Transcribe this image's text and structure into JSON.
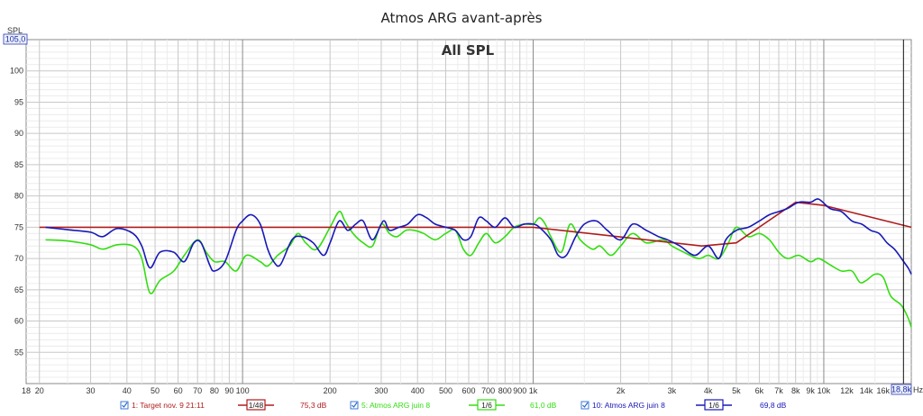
{
  "chart_data": {
    "type": "line",
    "title": "Atmos ARG avant-après",
    "subtitle": "All SPL",
    "ylabel": "SPL",
    "xunit": "Hz",
    "x_scale": "log",
    "xlim": [
      18,
      20000
    ],
    "ylim": [
      50,
      105
    ],
    "y_top_readout": "105,0",
    "x_end_readout": "18,8k",
    "cursor_x": 18800,
    "grid": true,
    "legend_placement": "bottom",
    "yticks": [
      {
        "v": 55,
        "label": "55"
      },
      {
        "v": 60,
        "label": "60"
      },
      {
        "v": 65,
        "label": "65"
      },
      {
        "v": 70,
        "label": "70"
      },
      {
        "v": 75,
        "label": "75"
      },
      {
        "v": 80,
        "label": "80"
      },
      {
        "v": 85,
        "label": "85"
      },
      {
        "v": 90,
        "label": "90"
      },
      {
        "v": 95,
        "label": "95"
      },
      {
        "v": 100,
        "label": "100"
      }
    ],
    "xticks": [
      {
        "v": 18,
        "label": "18"
      },
      {
        "v": 20,
        "label": "20"
      },
      {
        "v": 30,
        "label": "30"
      },
      {
        "v": 40,
        "label": "40"
      },
      {
        "v": 50,
        "label": "50"
      },
      {
        "v": 60,
        "label": "60"
      },
      {
        "v": 70,
        "label": "70"
      },
      {
        "v": 80,
        "label": "80"
      },
      {
        "v": 90,
        "label": "90"
      },
      {
        "v": 100,
        "label": "100"
      },
      {
        "v": 200,
        "label": "200"
      },
      {
        "v": 300,
        "label": "300"
      },
      {
        "v": 400,
        "label": "400"
      },
      {
        "v": 500,
        "label": "500"
      },
      {
        "v": 600,
        "label": "600"
      },
      {
        "v": 700,
        "label": "700"
      },
      {
        "v": 800,
        "label": "800"
      },
      {
        "v": 900,
        "label": "900"
      },
      {
        "v": 1000,
        "label": "1k"
      },
      {
        "v": 2000,
        "label": "2k"
      },
      {
        "v": 3000,
        "label": "3k"
      },
      {
        "v": 4000,
        "label": "4k"
      },
      {
        "v": 5000,
        "label": "5k"
      },
      {
        "v": 6000,
        "label": "6k"
      },
      {
        "v": 7000,
        "label": "7k"
      },
      {
        "v": 8000,
        "label": "8k"
      },
      {
        "v": 9000,
        "label": "9k"
      },
      {
        "v": 10000,
        "label": "10k"
      },
      {
        "v": 12000,
        "label": "12k"
      },
      {
        "v": 14000,
        "label": "14k"
      },
      {
        "v": 16000,
        "label": "16k"
      }
    ],
    "series": [
      {
        "name": "1: Target nov. 9 21:11",
        "smoothing": "1/48",
        "level": "75,3 dB",
        "color": "#b01c1c",
        "points": [
          [
            20,
            75
          ],
          [
            1000,
            75
          ],
          [
            3800,
            72
          ],
          [
            5000,
            72.5
          ],
          [
            8000,
            79
          ],
          [
            10000,
            78.5
          ],
          [
            20000,
            75
          ]
        ]
      },
      {
        "name": "5: Atmos ARG juin 8",
        "smoothing": "1/6",
        "level": "61,0 dB",
        "color": "#33dd11",
        "points": [
          [
            21,
            73
          ],
          [
            25,
            72.8
          ],
          [
            30,
            72.2
          ],
          [
            33,
            71.5
          ],
          [
            37,
            72.2
          ],
          [
            42,
            72
          ],
          [
            45,
            70
          ],
          [
            48,
            64.5
          ],
          [
            52,
            66.5
          ],
          [
            58,
            68
          ],
          [
            63,
            70.5
          ],
          [
            70,
            73
          ],
          [
            75,
            71
          ],
          [
            80,
            69.5
          ],
          [
            87,
            69.5
          ],
          [
            95,
            68
          ],
          [
            103,
            70.5
          ],
          [
            115,
            69.5
          ],
          [
            122,
            68.8
          ],
          [
            132,
            70.5
          ],
          [
            145,
            72
          ],
          [
            155,
            74
          ],
          [
            165,
            72.5
          ],
          [
            180,
            71.5
          ],
          [
            200,
            75
          ],
          [
            215,
            77.5
          ],
          [
            225,
            76
          ],
          [
            240,
            74
          ],
          [
            260,
            72.5
          ],
          [
            280,
            72
          ],
          [
            300,
            75.5
          ],
          [
            320,
            74
          ],
          [
            340,
            73.5
          ],
          [
            365,
            74.5
          ],
          [
            390,
            74.5
          ],
          [
            420,
            74
          ],
          [
            460,
            73
          ],
          [
            500,
            74
          ],
          [
            540,
            74.5
          ],
          [
            575,
            71.5
          ],
          [
            610,
            70.5
          ],
          [
            650,
            72.5
          ],
          [
            690,
            74
          ],
          [
            740,
            72.5
          ],
          [
            800,
            73.5
          ],
          [
            860,
            75
          ],
          [
            930,
            75.5
          ],
          [
            1000,
            75.5
          ],
          [
            1050,
            76.5
          ],
          [
            1100,
            75.5
          ],
          [
            1150,
            73.5
          ],
          [
            1250,
            71
          ],
          [
            1340,
            75.5
          ],
          [
            1450,
            73
          ],
          [
            1600,
            71.5
          ],
          [
            1700,
            72
          ],
          [
            1850,
            70.5
          ],
          [
            2000,
            72
          ],
          [
            2200,
            74
          ],
          [
            2450,
            72.5
          ],
          [
            2800,
            73
          ],
          [
            3000,
            72
          ],
          [
            3300,
            71
          ],
          [
            3700,
            70
          ],
          [
            4000,
            70.5
          ],
          [
            4350,
            70
          ],
          [
            4700,
            72.5
          ],
          [
            5000,
            75
          ],
          [
            5500,
            73.5
          ],
          [
            6000,
            74
          ],
          [
            6500,
            73
          ],
          [
            7000,
            71
          ],
          [
            7500,
            70
          ],
          [
            8200,
            70.5
          ],
          [
            9000,
            69.5
          ],
          [
            9600,
            70
          ],
          [
            10500,
            69
          ],
          [
            11500,
            68
          ],
          [
            12500,
            68
          ],
          [
            13300,
            66.2
          ],
          [
            14000,
            66.5
          ],
          [
            15000,
            67.5
          ],
          [
            16000,
            67
          ],
          [
            17000,
            64
          ],
          [
            18500,
            62.5
          ],
          [
            19500,
            60.5
          ],
          [
            20000,
            59
          ]
        ]
      },
      {
        "name": "10: Atmos ARG juin 8",
        "smoothing": "1/6",
        "level": "69,8 dB",
        "color": "#1818b8",
        "points": [
          [
            21,
            75
          ],
          [
            25,
            74.6
          ],
          [
            30,
            74.2
          ],
          [
            33,
            73.5
          ],
          [
            37,
            74.8
          ],
          [
            42,
            74
          ],
          [
            45,
            72
          ],
          [
            48,
            68.5
          ],
          [
            52,
            71
          ],
          [
            58,
            71
          ],
          [
            63,
            69.5
          ],
          [
            68,
            72.5
          ],
          [
            72,
            72.5
          ],
          [
            77,
            69
          ],
          [
            80,
            68
          ],
          [
            87,
            69.5
          ],
          [
            95,
            74.5
          ],
          [
            100,
            76
          ],
          [
            107,
            77
          ],
          [
            115,
            75.5
          ],
          [
            122,
            71.5
          ],
          [
            128,
            69.5
          ],
          [
            135,
            69
          ],
          [
            148,
            73
          ],
          [
            160,
            73.5
          ],
          [
            175,
            72.5
          ],
          [
            190,
            70.5
          ],
          [
            200,
            72.5
          ],
          [
            215,
            76
          ],
          [
            230,
            74.5
          ],
          [
            245,
            75.5
          ],
          [
            260,
            76
          ],
          [
            280,
            73
          ],
          [
            305,
            76
          ],
          [
            320,
            74.5
          ],
          [
            345,
            75
          ],
          [
            370,
            75.5
          ],
          [
            400,
            77
          ],
          [
            430,
            76.5
          ],
          [
            460,
            75.5
          ],
          [
            500,
            75
          ],
          [
            540,
            74.5
          ],
          [
            575,
            73
          ],
          [
            610,
            73.5
          ],
          [
            650,
            76.5
          ],
          [
            690,
            76
          ],
          [
            740,
            75
          ],
          [
            800,
            76.5
          ],
          [
            860,
            75
          ],
          [
            930,
            75.5
          ],
          [
            1000,
            75.5
          ],
          [
            1050,
            75
          ],
          [
            1150,
            73
          ],
          [
            1220,
            70.5
          ],
          [
            1300,
            70.5
          ],
          [
            1400,
            73.5
          ],
          [
            1500,
            75.5
          ],
          [
            1650,
            76
          ],
          [
            1800,
            74.5
          ],
          [
            2000,
            73
          ],
          [
            2200,
            75.5
          ],
          [
            2450,
            74.5
          ],
          [
            2700,
            73.5
          ],
          [
            2900,
            73
          ],
          [
            3200,
            72
          ],
          [
            3600,
            70.5
          ],
          [
            4000,
            72
          ],
          [
            4350,
            70
          ],
          [
            4600,
            73
          ],
          [
            5000,
            74.5
          ],
          [
            5500,
            75
          ],
          [
            6000,
            76
          ],
          [
            6500,
            77
          ],
          [
            7000,
            77.5
          ],
          [
            7500,
            78
          ],
          [
            8200,
            79
          ],
          [
            9000,
            79
          ],
          [
            9600,
            79.5
          ],
          [
            10500,
            78
          ],
          [
            11500,
            77.5
          ],
          [
            12500,
            76
          ],
          [
            13500,
            75.5
          ],
          [
            14500,
            74.5
          ],
          [
            15500,
            74
          ],
          [
            16500,
            72.5
          ],
          [
            17500,
            71.5
          ],
          [
            18500,
            70
          ],
          [
            19500,
            68.5
          ],
          [
            20000,
            67.5
          ]
        ]
      }
    ]
  }
}
